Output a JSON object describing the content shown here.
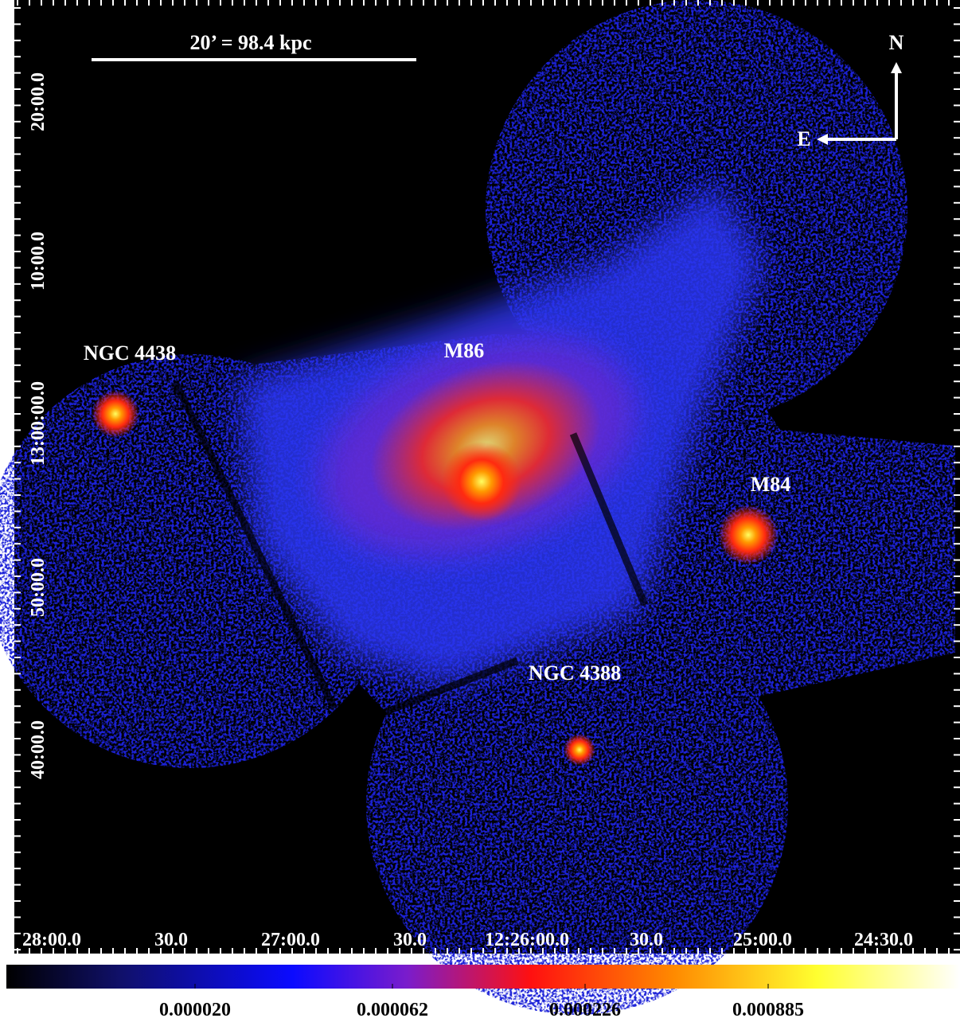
{
  "image": {
    "scale_bar": "20’ = 98.4 kpc",
    "compass": {
      "north": "N",
      "east": "E"
    },
    "labels": [
      "NGC 4438",
      "M86",
      "M84",
      "NGC 4388"
    ]
  },
  "axes": {
    "x_ticks": [
      "28:00.0",
      "30.0",
      "27:00.0",
      "30.0",
      "12:26:00.0",
      "30.0",
      "25:00.0",
      "24:30.0"
    ],
    "y_ticks": [
      "20:00.0",
      "10:00.0",
      "13:00:00.0",
      "50:00.0",
      "40:00.0"
    ]
  },
  "colorbar": {
    "labels": [
      "0.000020",
      "0.000062",
      "0.000226",
      "0.000885"
    ]
  }
}
